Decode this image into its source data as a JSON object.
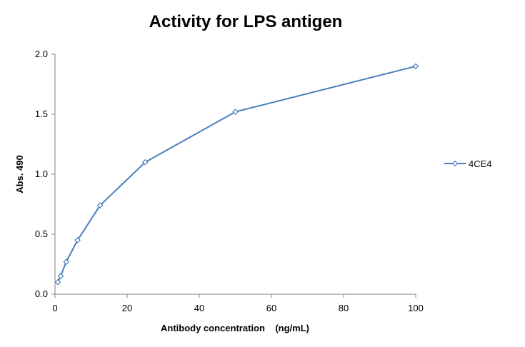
{
  "chart_data": {
    "type": "scatter",
    "title": "Activity for LPS antigen",
    "xlabel": "Antibody concentration    (ng/mL)",
    "ylabel": "Abs. 490",
    "xlim": [
      0,
      100
    ],
    "ylim": [
      0,
      2.0
    ],
    "xticks": [
      0,
      20,
      40,
      60,
      80,
      100
    ],
    "xtick_labels": [
      "0",
      "20",
      "40",
      "60",
      "80",
      "100"
    ],
    "yticks": [
      0,
      0.5,
      1.0,
      1.5,
      2.0
    ],
    "ytick_labels": [
      "0.0",
      "0.5",
      "1.0",
      "1.5",
      "2.0"
    ],
    "grid": false,
    "legend_position": "right",
    "series": [
      {
        "name": "4CE4",
        "color": "#4a7ebb",
        "marker": "diamond",
        "x": [
          0.78,
          1.56,
          3.125,
          6.25,
          12.5,
          25,
          50,
          100
        ],
        "y": [
          0.1,
          0.15,
          0.27,
          0.45,
          0.74,
          1.1,
          1.52,
          1.9
        ]
      }
    ]
  }
}
